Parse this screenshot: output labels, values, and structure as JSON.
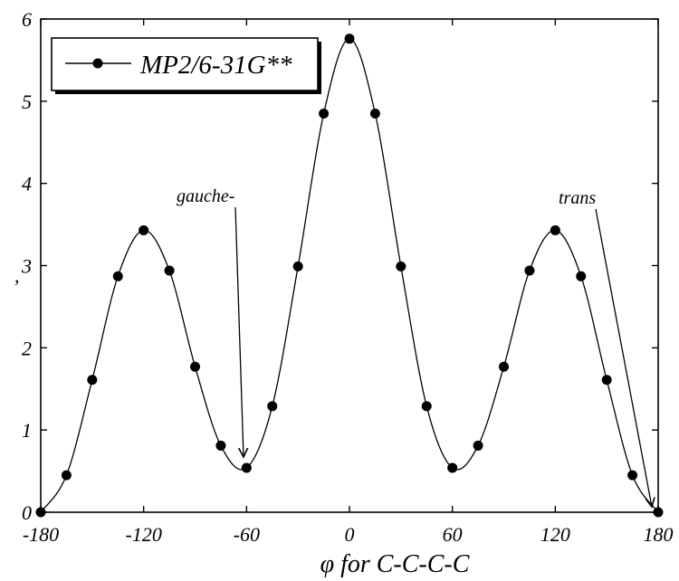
{
  "chart_data": {
    "type": "line",
    "title": "",
    "xlabel": "φ for C-C-C-C",
    "ylabel": "",
    "xlim": [
      -180,
      180
    ],
    "ylim": [
      0,
      6
    ],
    "xticks": [
      -180,
      -120,
      -60,
      0,
      60,
      120,
      180
    ],
    "xtick_labels": [
      "-180",
      "-120",
      "-60",
      "0",
      "60",
      "120",
      "180"
    ],
    "yticks": [
      0,
      1,
      2,
      3,
      4,
      5,
      6
    ],
    "ytick_labels": [
      "0",
      "1",
      "2",
      "3",
      "4",
      "5",
      "6"
    ],
    "grid": false,
    "legend": {
      "position": "top-left",
      "entries": [
        "MP2/6-31G**"
      ]
    },
    "series": [
      {
        "name": "MP2/6-31G**",
        "marker": "circle",
        "color": "#000000",
        "x": [
          -180,
          -165,
          -150,
          -135,
          -120,
          -105,
          -90,
          -75,
          -60,
          -45,
          -30,
          -15,
          0,
          15,
          30,
          45,
          60,
          75,
          90,
          105,
          120,
          135,
          150,
          165,
          180
        ],
        "y": [
          0.0,
          0.45,
          1.61,
          2.87,
          3.43,
          2.94,
          1.77,
          0.81,
          0.54,
          1.29,
          2.99,
          4.85,
          5.76,
          4.85,
          2.99,
          1.29,
          0.54,
          0.81,
          1.77,
          2.94,
          3.43,
          2.87,
          1.61,
          0.45,
          0.0
        ]
      }
    ],
    "annotations": [
      {
        "text": "gauche-",
        "x": -60,
        "y": 0.54
      },
      {
        "text": "trans",
        "x": 180,
        "y": 0.0
      }
    ],
    "stray_mark": ","
  }
}
